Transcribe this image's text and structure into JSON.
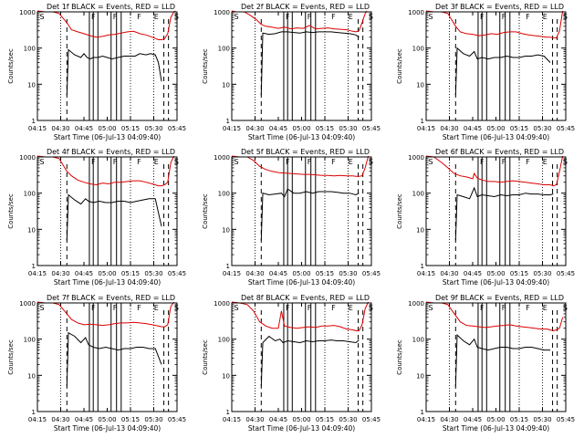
{
  "layout": {
    "rows": 3,
    "cols": 3
  },
  "colors": {
    "events": "#000000",
    "lld": "#dd0000",
    "axis": "#000000"
  },
  "chart_data": {
    "type": "line",
    "x_ticks": [
      "04:15",
      "04:30",
      "04:45",
      "05:00",
      "05:15",
      "05:30",
      "05:45"
    ],
    "x_range_minutes": [
      0,
      90
    ],
    "y_scale": "log",
    "ylim": [
      1,
      1000
    ],
    "y_ticks": [
      "1",
      "10",
      "100",
      "1000"
    ],
    "ylabel": "Counts/sec",
    "xlabel": "Start Time (06-Jul-13 04:09:40)",
    "dotted_lines": [
      15,
      60,
      75
    ],
    "dashed_lines": [
      19,
      81.5,
      84.5
    ],
    "solid_lines": [
      33.5,
      36,
      39,
      47.5,
      51,
      54
    ],
    "markers": [
      {
        "x": 0.3,
        "label": "S"
      },
      {
        "x": 33.5,
        "label": "F"
      },
      {
        "x": 47.5,
        "label": "F"
      },
      {
        "x": 63,
        "label": "F"
      },
      {
        "x": 74,
        "label": "E"
      },
      {
        "x": 87,
        "label": "S"
      }
    ],
    "panels": [
      {
        "title": "Det 1f BLACK = Events, RED = LLD",
        "series": [
          {
            "name": "Events",
            "color": "#000000",
            "x": [
              19,
              20,
              24,
              28,
              30,
              32,
              34,
              36,
              39,
              42,
              45,
              48,
              52,
              56,
              60,
              63,
              66,
              70,
              73,
              76,
              78,
              80
            ],
            "y": [
              5,
              90,
              65,
              55,
              70,
              55,
              50,
              55,
              55,
              60,
              55,
              50,
              55,
              60,
              60,
              60,
              70,
              65,
              70,
              65,
              40,
              12
            ]
          },
          {
            "name": "LLD",
            "color": "#dd0000",
            "x": [
              0,
              5,
              10,
              14,
              19,
              22,
              26,
              30,
              34,
              38,
              42,
              46,
              50,
              54,
              58,
              62,
              66,
              70,
              74,
              78,
              80,
              82,
              84,
              86,
              88,
              89
            ],
            "y": [
              1100,
              1000,
              1000,
              900,
              500,
              320,
              280,
              250,
              220,
              200,
              210,
              230,
              240,
              260,
              280,
              290,
              250,
              230,
              200,
              170,
              170,
              180,
              250,
              700,
              1000,
              1100
            ]
          }
        ]
      },
      {
        "title": "Det 2f BLACK = Events, RED = LLD",
        "series": [
          {
            "name": "Events",
            "color": "#000000",
            "x": [
              19,
              20,
              24,
              28,
              32,
              36,
              40,
              44,
              48,
              52,
              56,
              60,
              64,
              68,
              72,
              76,
              80,
              82
            ],
            "y": [
              5,
              260,
              240,
              250,
              280,
              280,
              270,
              260,
              280,
              270,
              280,
              280,
              280,
              270,
              260,
              250,
              230,
              200
            ]
          },
          {
            "name": "LLD",
            "color": "#dd0000",
            "x": [
              0,
              3,
              8,
              12,
              16,
              19,
              22,
              26,
              30,
              34,
              38,
              42,
              46,
              50,
              54,
              58,
              62,
              66,
              70,
              74,
              78,
              80,
              82,
              84,
              86,
              87
            ],
            "y": [
              1100,
              1000,
              1000,
              800,
              600,
              450,
              400,
              380,
              350,
              380,
              340,
              360,
              350,
              420,
              340,
              350,
              360,
              340,
              330,
              320,
              290,
              280,
              300,
              500,
              900,
              1100
            ]
          }
        ]
      },
      {
        "title": "Det 3f BLACK = Events, RED = LLD",
        "series": [
          {
            "name": "Events",
            "color": "#000000",
            "x": [
              19,
              20,
              24,
              28,
              31,
              33,
              36,
              40,
              44,
              48,
              52,
              56,
              60,
              64,
              68,
              72,
              76,
              80
            ],
            "y": [
              5,
              100,
              70,
              60,
              80,
              50,
              55,
              50,
              55,
              55,
              60,
              55,
              55,
              60,
              60,
              65,
              60,
              40
            ]
          },
          {
            "name": "LLD",
            "color": "#dd0000",
            "x": [
              0,
              5,
              10,
              14,
              19,
              22,
              26,
              30,
              34,
              38,
              42,
              46,
              50,
              54,
              58,
              62,
              66,
              70,
              74,
              78,
              80,
              82,
              84,
              86,
              88
            ],
            "y": [
              1100,
              1000,
              1000,
              900,
              400,
              280,
              250,
              240,
              220,
              230,
              250,
              240,
              270,
              280,
              280,
              250,
              230,
              220,
              210,
              200,
              200,
              190,
              190,
              300,
              1100
            ]
          }
        ]
      },
      {
        "title": "Det 4f BLACK = Events, RED = LLD",
        "series": [
          {
            "name": "Events",
            "color": "#000000",
            "x": [
              19,
              20,
              24,
              28,
              31,
              33,
              36,
              40,
              44,
              48,
              52,
              56,
              60,
              64,
              68,
              72,
              76,
              80
            ],
            "y": [
              5,
              90,
              65,
              50,
              70,
              60,
              55,
              60,
              55,
              55,
              60,
              60,
              55,
              60,
              65,
              70,
              70,
              12
            ]
          },
          {
            "name": "LLD",
            "color": "#dd0000",
            "x": [
              0,
              5,
              10,
              14,
              19,
              22,
              26,
              30,
              34,
              38,
              42,
              46,
              50,
              54,
              58,
              62,
              66,
              70,
              74,
              78,
              80,
              82,
              84,
              86,
              88
            ],
            "y": [
              1100,
              1000,
              1000,
              900,
              400,
              300,
              230,
              200,
              180,
              170,
              190,
              180,
              200,
              200,
              210,
              220,
              220,
              200,
              180,
              160,
              160,
              170,
              200,
              700,
              1100
            ]
          }
        ]
      },
      {
        "title": "Det 5f BLACK = Events, RED = LLD",
        "series": [
          {
            "name": "Events",
            "color": "#000000",
            "x": [
              19,
              20,
              24,
              28,
              32,
              34,
              36,
              40,
              44,
              48,
              52,
              56,
              60,
              64,
              68,
              72,
              76,
              80,
              82
            ],
            "y": [
              5,
              100,
              90,
              95,
              100,
              80,
              130,
              100,
              100,
              110,
              100,
              110,
              110,
              110,
              105,
              100,
              100,
              90,
              100
            ]
          },
          {
            "name": "LLD",
            "color": "#dd0000",
            "x": [
              0,
              5,
              10,
              14,
              18,
              22,
              26,
              30,
              34,
              38,
              42,
              46,
              50,
              54,
              58,
              62,
              66,
              70,
              74,
              78,
              80,
              82,
              84,
              86,
              88
            ],
            "y": [
              1100,
              1000,
              1000,
              800,
              550,
              450,
              400,
              370,
              360,
              350,
              340,
              330,
              330,
              320,
              310,
              310,
              300,
              310,
              300,
              300,
              290,
              290,
              300,
              500,
              1100
            ]
          }
        ]
      },
      {
        "title": "Det 6f BLACK = Events, RED = LLD",
        "series": [
          {
            "name": "Events",
            "color": "#000000",
            "x": [
              19,
              20,
              24,
              28,
              31,
              33,
              36,
              40,
              44,
              48,
              52,
              56,
              60,
              64,
              68,
              72,
              76,
              80,
              82
            ],
            "y": [
              5,
              90,
              80,
              70,
              140,
              80,
              90,
              85,
              80,
              90,
              85,
              90,
              90,
              100,
              95,
              95,
              90,
              90,
              95
            ]
          },
          {
            "name": "LLD",
            "color": "#dd0000",
            "x": [
              0,
              5,
              10,
              14,
              18,
              22,
              26,
              30,
              31,
              33,
              36,
              40,
              44,
              48,
              52,
              56,
              60,
              64,
              68,
              72,
              76,
              80,
              82,
              84,
              86,
              88
            ],
            "y": [
              1100,
              1000,
              700,
              500,
              350,
              300,
              280,
              250,
              350,
              260,
              230,
              210,
              210,
              200,
              210,
              220,
              210,
              200,
              190,
              180,
              170,
              170,
              160,
              170,
              400,
              1100
            ]
          }
        ]
      },
      {
        "title": "Det 7f BLACK = Events, RED = LLD",
        "series": [
          {
            "name": "Events",
            "color": "#000000",
            "x": [
              19,
              20,
              24,
              28,
              31,
              33,
              36,
              40,
              44,
              48,
              52,
              56,
              60,
              64,
              68,
              72,
              76,
              80
            ],
            "y": [
              5,
              150,
              120,
              80,
              110,
              70,
              60,
              55,
              60,
              55,
              50,
              55,
              55,
              60,
              60,
              55,
              55,
              20
            ]
          },
          {
            "name": "LLD",
            "color": "#dd0000",
            "x": [
              0,
              5,
              10,
              14,
              19,
              22,
              26,
              30,
              34,
              38,
              42,
              46,
              50,
              54,
              58,
              62,
              66,
              70,
              74,
              78,
              80,
              82,
              84,
              86,
              88
            ],
            "y": [
              1100,
              1000,
              1000,
              900,
              500,
              350,
              280,
              250,
              260,
              250,
              240,
              250,
              270,
              280,
              280,
              290,
              280,
              270,
              250,
              230,
              220,
              220,
              250,
              800,
              1100
            ]
          }
        ]
      },
      {
        "title": "Det 8f BLACK = Events, RED = LLD",
        "series": [
          {
            "name": "Events",
            "color": "#000000",
            "x": [
              19,
              20,
              24,
              28,
              31,
              33,
              36,
              40,
              44,
              48,
              52,
              56,
              60,
              64,
              68,
              72,
              76,
              80,
              82
            ],
            "y": [
              5,
              80,
              120,
              90,
              100,
              80,
              90,
              85,
              80,
              90,
              85,
              90,
              90,
              95,
              90,
              90,
              85,
              80,
              95
            ]
          },
          {
            "name": "LLD",
            "color": "#dd0000",
            "x": [
              0,
              5,
              10,
              14,
              18,
              22,
              26,
              30,
              32,
              34,
              38,
              42,
              46,
              50,
              54,
              58,
              62,
              66,
              70,
              74,
              78,
              80,
              82,
              84,
              86,
              88
            ],
            "y": [
              1100,
              1000,
              900,
              600,
              300,
              230,
              200,
              200,
              600,
              230,
              210,
              200,
              210,
              220,
              210,
              230,
              230,
              240,
              220,
              190,
              180,
              170,
              170,
              250,
              700,
              1100
            ]
          }
        ]
      },
      {
        "title": "Det 9f BLACK = Events, RED = LLD",
        "series": [
          {
            "name": "Events",
            "color": "#000000",
            "x": [
              19,
              20,
              24,
              28,
              31,
              33,
              36,
              40,
              44,
              48,
              52,
              56,
              60,
              64,
              68,
              72,
              76,
              80
            ],
            "y": [
              5,
              130,
              90,
              70,
              100,
              60,
              55,
              50,
              55,
              60,
              60,
              55,
              55,
              60,
              60,
              55,
              50,
              50
            ]
          },
          {
            "name": "LLD",
            "color": "#dd0000",
            "x": [
              0,
              5,
              10,
              14,
              19,
              22,
              26,
              30,
              34,
              38,
              42,
              46,
              50,
              54,
              58,
              62,
              66,
              70,
              74,
              78,
              80,
              82,
              84,
              86,
              88
            ],
            "y": [
              1100,
              1000,
              1000,
              900,
              450,
              300,
              240,
              230,
              220,
              210,
              220,
              230,
              240,
              250,
              230,
              220,
              210,
              200,
              190,
              190,
              180,
              170,
              180,
              200,
              400
            ]
          }
        ]
      }
    ]
  }
}
